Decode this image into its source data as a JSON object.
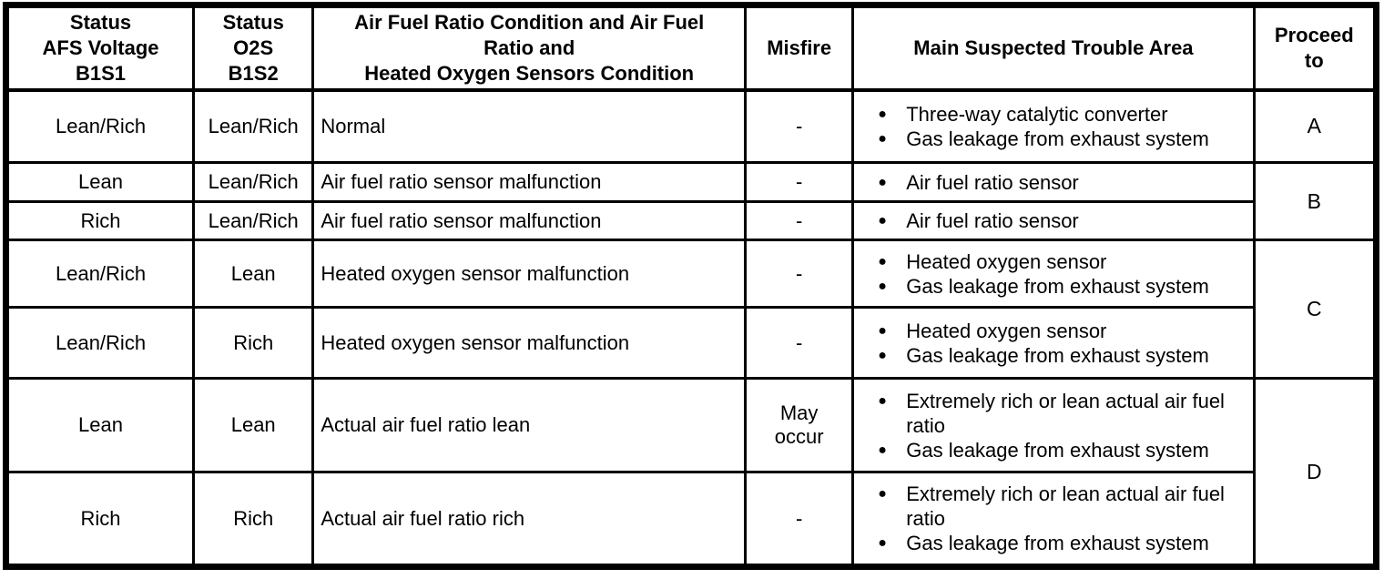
{
  "icons": {
    "bullet": "●"
  },
  "table": {
    "headers": {
      "afs": "Status\nAFS Voltage\nB1S1",
      "o2s": "Status\nO2S\nB1S2",
      "condition": "Air Fuel Ratio Condition and Air Fuel\nRatio and\nHeated Oxygen Sensors Condition",
      "misfire": "Misfire",
      "trouble": "Main Suspected Trouble Area",
      "proceed": "Proceed\nto"
    },
    "rows": [
      {
        "afs": "Lean/Rich",
        "o2s": "Lean/Rich",
        "condition": "Normal",
        "misfire": "-",
        "trouble": [
          "Three-way catalytic converter",
          "Gas leakage from exhaust system"
        ],
        "proceed": "A"
      },
      {
        "afs": "Lean",
        "o2s": "Lean/Rich",
        "condition": "Air fuel ratio sensor malfunction",
        "misfire": "-",
        "trouble": [
          "Air fuel ratio sensor"
        ],
        "proceed": "B"
      },
      {
        "afs": "Rich",
        "o2s": "Lean/Rich",
        "condition": "Air fuel ratio sensor malfunction",
        "misfire": "-",
        "trouble": [
          "Air fuel ratio sensor"
        ]
      },
      {
        "afs": "Lean/Rich",
        "o2s": "Lean",
        "condition": "Heated oxygen sensor malfunction",
        "misfire": "-",
        "trouble": [
          "Heated oxygen sensor",
          "Gas leakage from exhaust system"
        ],
        "proceed": "C"
      },
      {
        "afs": "Lean/Rich",
        "o2s": "Rich",
        "condition": "Heated oxygen sensor malfunction",
        "misfire": "-",
        "trouble": [
          "Heated oxygen sensor",
          "Gas leakage from exhaust system"
        ]
      },
      {
        "afs": "Lean",
        "o2s": "Lean",
        "condition": "Actual air fuel ratio lean",
        "misfire": "May\noccur",
        "trouble": [
          "Extremely rich or lean actual air fuel ratio",
          "Gas leakage from exhaust system"
        ],
        "proceed": "D"
      },
      {
        "afs": "Rich",
        "o2s": "Rich",
        "condition": "Actual air fuel ratio rich",
        "misfire": "-",
        "trouble": [
          "Extremely rich or lean actual air fuel ratio",
          "Gas leakage from exhaust system"
        ]
      }
    ]
  }
}
